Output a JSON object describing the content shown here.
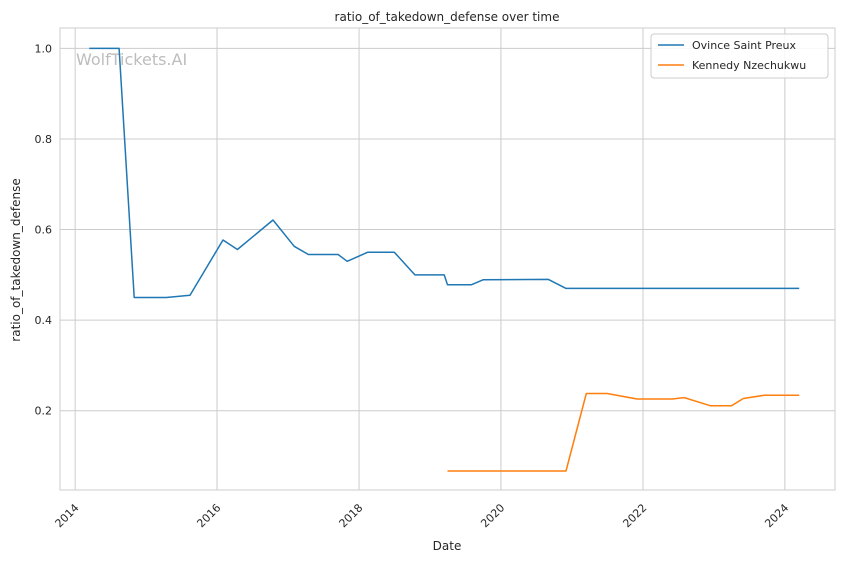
{
  "chart_data": {
    "type": "line",
    "title": "ratio_of_takedown_defense over time",
    "xlabel": "Date",
    "ylabel": "ratio_of_takedown_defense",
    "watermark": "WolfTickets.AI",
    "xlim": [
      "2013-10-15",
      "2024-09-15"
    ],
    "ylim": [
      0.025,
      1.045
    ],
    "x_ticks": [
      "2014-01-01",
      "2016-01-01",
      "2018-01-01",
      "2020-01-01",
      "2022-01-01",
      "2024-01-01"
    ],
    "x_tick_labels": [
      "2014",
      "2016",
      "2018",
      "2020",
      "2022",
      "2024"
    ],
    "y_ticks": [
      0.2,
      0.4,
      0.6,
      0.8,
      1.0
    ],
    "y_tick_labels": [
      "0.2",
      "0.4",
      "0.6",
      "0.8",
      "1.0"
    ],
    "grid": true,
    "legend_position": "top-right",
    "series": [
      {
        "name": "Ovince Saint Preux",
        "color": "#1f77b4",
        "points": [
          [
            "2014-03-15",
            1.0
          ],
          [
            "2014-08-15",
            1.0
          ],
          [
            "2014-11-01",
            0.45
          ],
          [
            "2015-04-15",
            0.45
          ],
          [
            "2015-08-15",
            0.455
          ],
          [
            "2016-02-01",
            0.577
          ],
          [
            "2016-04-15",
            0.556
          ],
          [
            "2016-10-15",
            0.621
          ],
          [
            "2017-02-01",
            0.563
          ],
          [
            "2017-04-15",
            0.545
          ],
          [
            "2017-09-15",
            0.545
          ],
          [
            "2017-11-01",
            0.53
          ],
          [
            "2018-02-15",
            0.55
          ],
          [
            "2018-07-01",
            0.55
          ],
          [
            "2018-10-15",
            0.5
          ],
          [
            "2019-03-15",
            0.5
          ],
          [
            "2019-04-01",
            0.478
          ],
          [
            "2019-08-01",
            0.478
          ],
          [
            "2019-10-01",
            0.489
          ],
          [
            "2020-09-01",
            0.49
          ],
          [
            "2020-12-01",
            0.47
          ],
          [
            "2024-03-15",
            0.47
          ]
        ]
      },
      {
        "name": "Kennedy Nzechukwu",
        "color": "#ff7f0e",
        "points": [
          [
            "2019-04-01",
            0.067
          ],
          [
            "2020-12-01",
            0.067
          ],
          [
            "2021-03-15",
            0.238
          ],
          [
            "2021-07-01",
            0.238
          ],
          [
            "2021-12-01",
            0.226
          ],
          [
            "2022-06-01",
            0.226
          ],
          [
            "2022-08-01",
            0.229
          ],
          [
            "2022-12-15",
            0.211
          ],
          [
            "2023-04-01",
            0.211
          ],
          [
            "2023-06-01",
            0.227
          ],
          [
            "2023-09-15",
            0.234
          ],
          [
            "2024-03-15",
            0.234
          ]
        ]
      }
    ]
  }
}
